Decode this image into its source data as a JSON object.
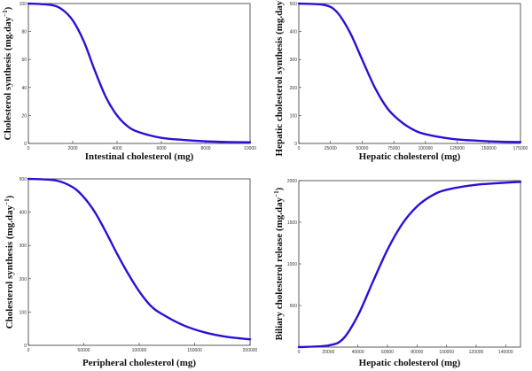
{
  "chart_data": [
    {
      "type": "line",
      "xlabel": "Intestinal cholesterol (mg)",
      "ylabel": "Cholesterol synthesis (mg.day",
      "ylabel_sup": "−1",
      "ylabel_close": ")",
      "xlim": [
        0,
        10000
      ],
      "ylim": [
        0,
        100
      ],
      "xticks": [
        0,
        2000,
        4000,
        6000,
        8000,
        10000
      ],
      "yticks": [
        0,
        20,
        40,
        60,
        80,
        100
      ],
      "grid": false,
      "legend": "none",
      "color": "#2a10d8",
      "series": [
        {
          "x": [
            0,
            1000,
            1500,
            2000,
            2500,
            3000,
            3500,
            4000,
            4500,
            5000,
            6000,
            7000,
            8000,
            9000,
            10000
          ],
          "values": [
            100,
            99,
            96,
            88,
            73,
            52,
            33,
            20,
            12,
            8,
            4,
            2.5,
            1.5,
            1,
            0.8
          ]
        }
      ]
    },
    {
      "type": "line",
      "xlabel": "Hepatic cholesterol (mg)",
      "ylabel": "Hepatic cholesterol synthesis (mg.day",
      "ylabel_sup": "−1",
      "ylabel_close": ")",
      "xlim": [
        0,
        175000
      ],
      "ylim": [
        0,
        500
      ],
      "xticks": [
        0,
        25000,
        50000,
        75000,
        100000,
        125000,
        150000,
        175000
      ],
      "yticks": [
        0,
        100,
        200,
        300,
        400,
        500
      ],
      "grid": false,
      "legend": "none",
      "color": "#2a10d8",
      "series": [
        {
          "x": [
            0,
            20000,
            30000,
            40000,
            50000,
            60000,
            70000,
            80000,
            90000,
            100000,
            120000,
            140000,
            160000,
            175000
          ],
          "values": [
            500,
            495,
            470,
            400,
            300,
            200,
            125,
            80,
            50,
            33,
            17,
            10,
            6,
            5
          ]
        }
      ]
    },
    {
      "type": "line",
      "xlabel": "Peripheral cholesterol (mg)",
      "ylabel": "Cholesterol synthesis (mg.day",
      "ylabel_sup": "−1",
      "ylabel_close": ")",
      "xlim": [
        0,
        200000
      ],
      "ylim": [
        0,
        500
      ],
      "xticks": [
        0,
        50000,
        100000,
        150000,
        200000
      ],
      "yticks": [
        0,
        100,
        200,
        300,
        400,
        500
      ],
      "grid": false,
      "legend": "none",
      "color": "#2a10d8",
      "series": [
        {
          "x": [
            0,
            25000,
            40000,
            50000,
            60000,
            70000,
            80000,
            90000,
            100000,
            110000,
            120000,
            140000,
            160000,
            180000,
            200000
          ],
          "values": [
            500,
            495,
            475,
            445,
            400,
            340,
            275,
            215,
            162,
            120,
            95,
            60,
            38,
            25,
            18
          ]
        }
      ]
    },
    {
      "type": "line",
      "xlabel": "Hepatic cholesterol (mg)",
      "ylabel": "Biliary cholesterol release (mg.day",
      "ylabel_sup": "−1",
      "ylabel_close": ")",
      "xlim": [
        0,
        150000
      ],
      "ylim": [
        0,
        2000
      ],
      "xticks": [
        0,
        20000,
        40000,
        60000,
        80000,
        100000,
        120000,
        140000
      ],
      "yticks": [
        500,
        1000,
        1500,
        2000
      ],
      "grid": false,
      "legend": "none",
      "color": "#2a10d8",
      "series": [
        {
          "x": [
            0,
            20000,
            30000,
            40000,
            50000,
            60000,
            70000,
            80000,
            90000,
            100000,
            120000,
            140000,
            150000
          ],
          "values": [
            0,
            20,
            100,
            380,
            780,
            1170,
            1480,
            1690,
            1820,
            1890,
            1950,
            1975,
            1985
          ]
        }
      ]
    }
  ]
}
